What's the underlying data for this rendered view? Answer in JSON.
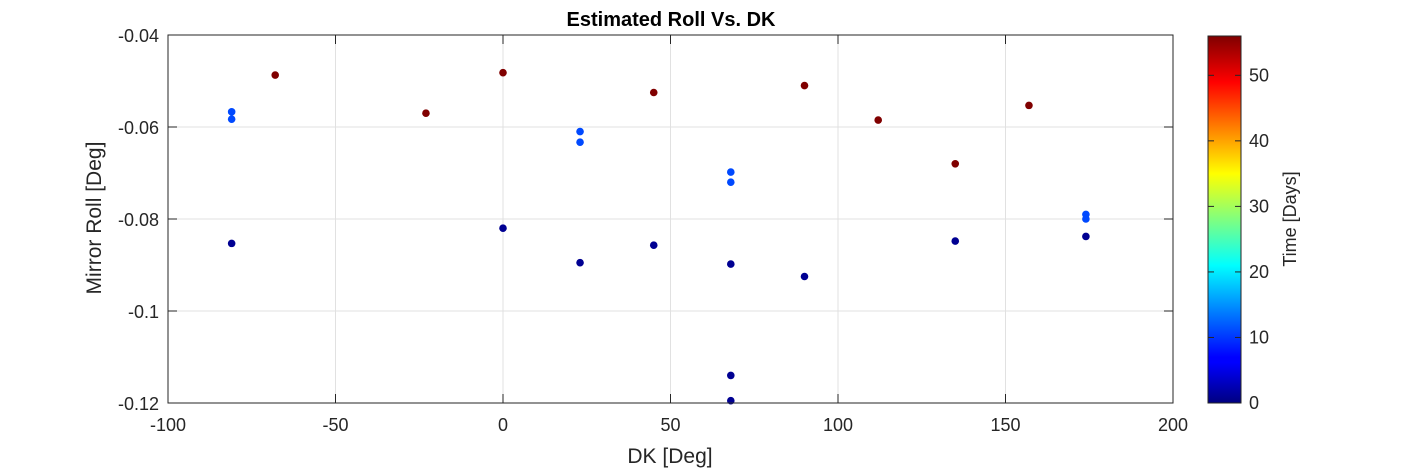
{
  "chart_data": {
    "type": "scatter",
    "title": "Estimated Roll Vs. DK",
    "xlabel": "DK [Deg]",
    "ylabel": "Mirror Roll [Deg]",
    "xlim": [
      -100,
      200
    ],
    "ylim": [
      -0.12,
      -0.04
    ],
    "xticks": [
      -100,
      -50,
      0,
      50,
      100,
      150,
      200
    ],
    "xtick_labels": [
      "-100",
      "-50",
      "0",
      "50",
      "100",
      "150",
      "200"
    ],
    "yticks": [
      -0.12,
      -0.1,
      -0.08,
      -0.06,
      -0.04
    ],
    "ytick_labels": [
      "-0.12",
      "-0.1",
      "-0.08",
      "-0.06",
      "-0.04"
    ],
    "grid": true,
    "colormap": "jet",
    "colorbar": {
      "label": "Time [Days]",
      "lim": [
        0,
        56
      ],
      "ticks": [
        0,
        10,
        20,
        30,
        40,
        50
      ],
      "tick_labels": [
        "0",
        "10",
        "20",
        "30",
        "40",
        "50"
      ]
    },
    "points": [
      {
        "x": -81,
        "y": -0.0853,
        "t": 1
      },
      {
        "x": -81,
        "y": -0.0567,
        "t": 11
      },
      {
        "x": -81,
        "y": -0.0583,
        "t": 11
      },
      {
        "x": -68,
        "y": -0.0487,
        "t": 56
      },
      {
        "x": -23,
        "y": -0.057,
        "t": 56
      },
      {
        "x": 0,
        "y": -0.082,
        "t": 1
      },
      {
        "x": 0,
        "y": -0.0482,
        "t": 56
      },
      {
        "x": 23,
        "y": -0.0895,
        "t": 1
      },
      {
        "x": 23,
        "y": -0.061,
        "t": 11
      },
      {
        "x": 23,
        "y": -0.0633,
        "t": 11
      },
      {
        "x": 45,
        "y": -0.0857,
        "t": 1
      },
      {
        "x": 45,
        "y": -0.0525,
        "t": 56
      },
      {
        "x": 68,
        "y": -0.0898,
        "t": 1
      },
      {
        "x": 68,
        "y": -0.114,
        "t": 1
      },
      {
        "x": 68,
        "y": -0.1195,
        "t": 1
      },
      {
        "x": 68,
        "y": -0.0698,
        "t": 11
      },
      {
        "x": 68,
        "y": -0.072,
        "t": 11
      },
      {
        "x": 90,
        "y": -0.0925,
        "t": 1
      },
      {
        "x": 90,
        "y": -0.051,
        "t": 56
      },
      {
        "x": 112,
        "y": -0.0585,
        "t": 56
      },
      {
        "x": 135,
        "y": -0.0848,
        "t": 1
      },
      {
        "x": 135,
        "y": -0.068,
        "t": 56
      },
      {
        "x": 157,
        "y": -0.0553,
        "t": 56
      },
      {
        "x": 174,
        "y": -0.0838,
        "t": 1
      },
      {
        "x": 174,
        "y": -0.079,
        "t": 11
      },
      {
        "x": 174,
        "y": -0.08,
        "t": 11
      }
    ]
  }
}
